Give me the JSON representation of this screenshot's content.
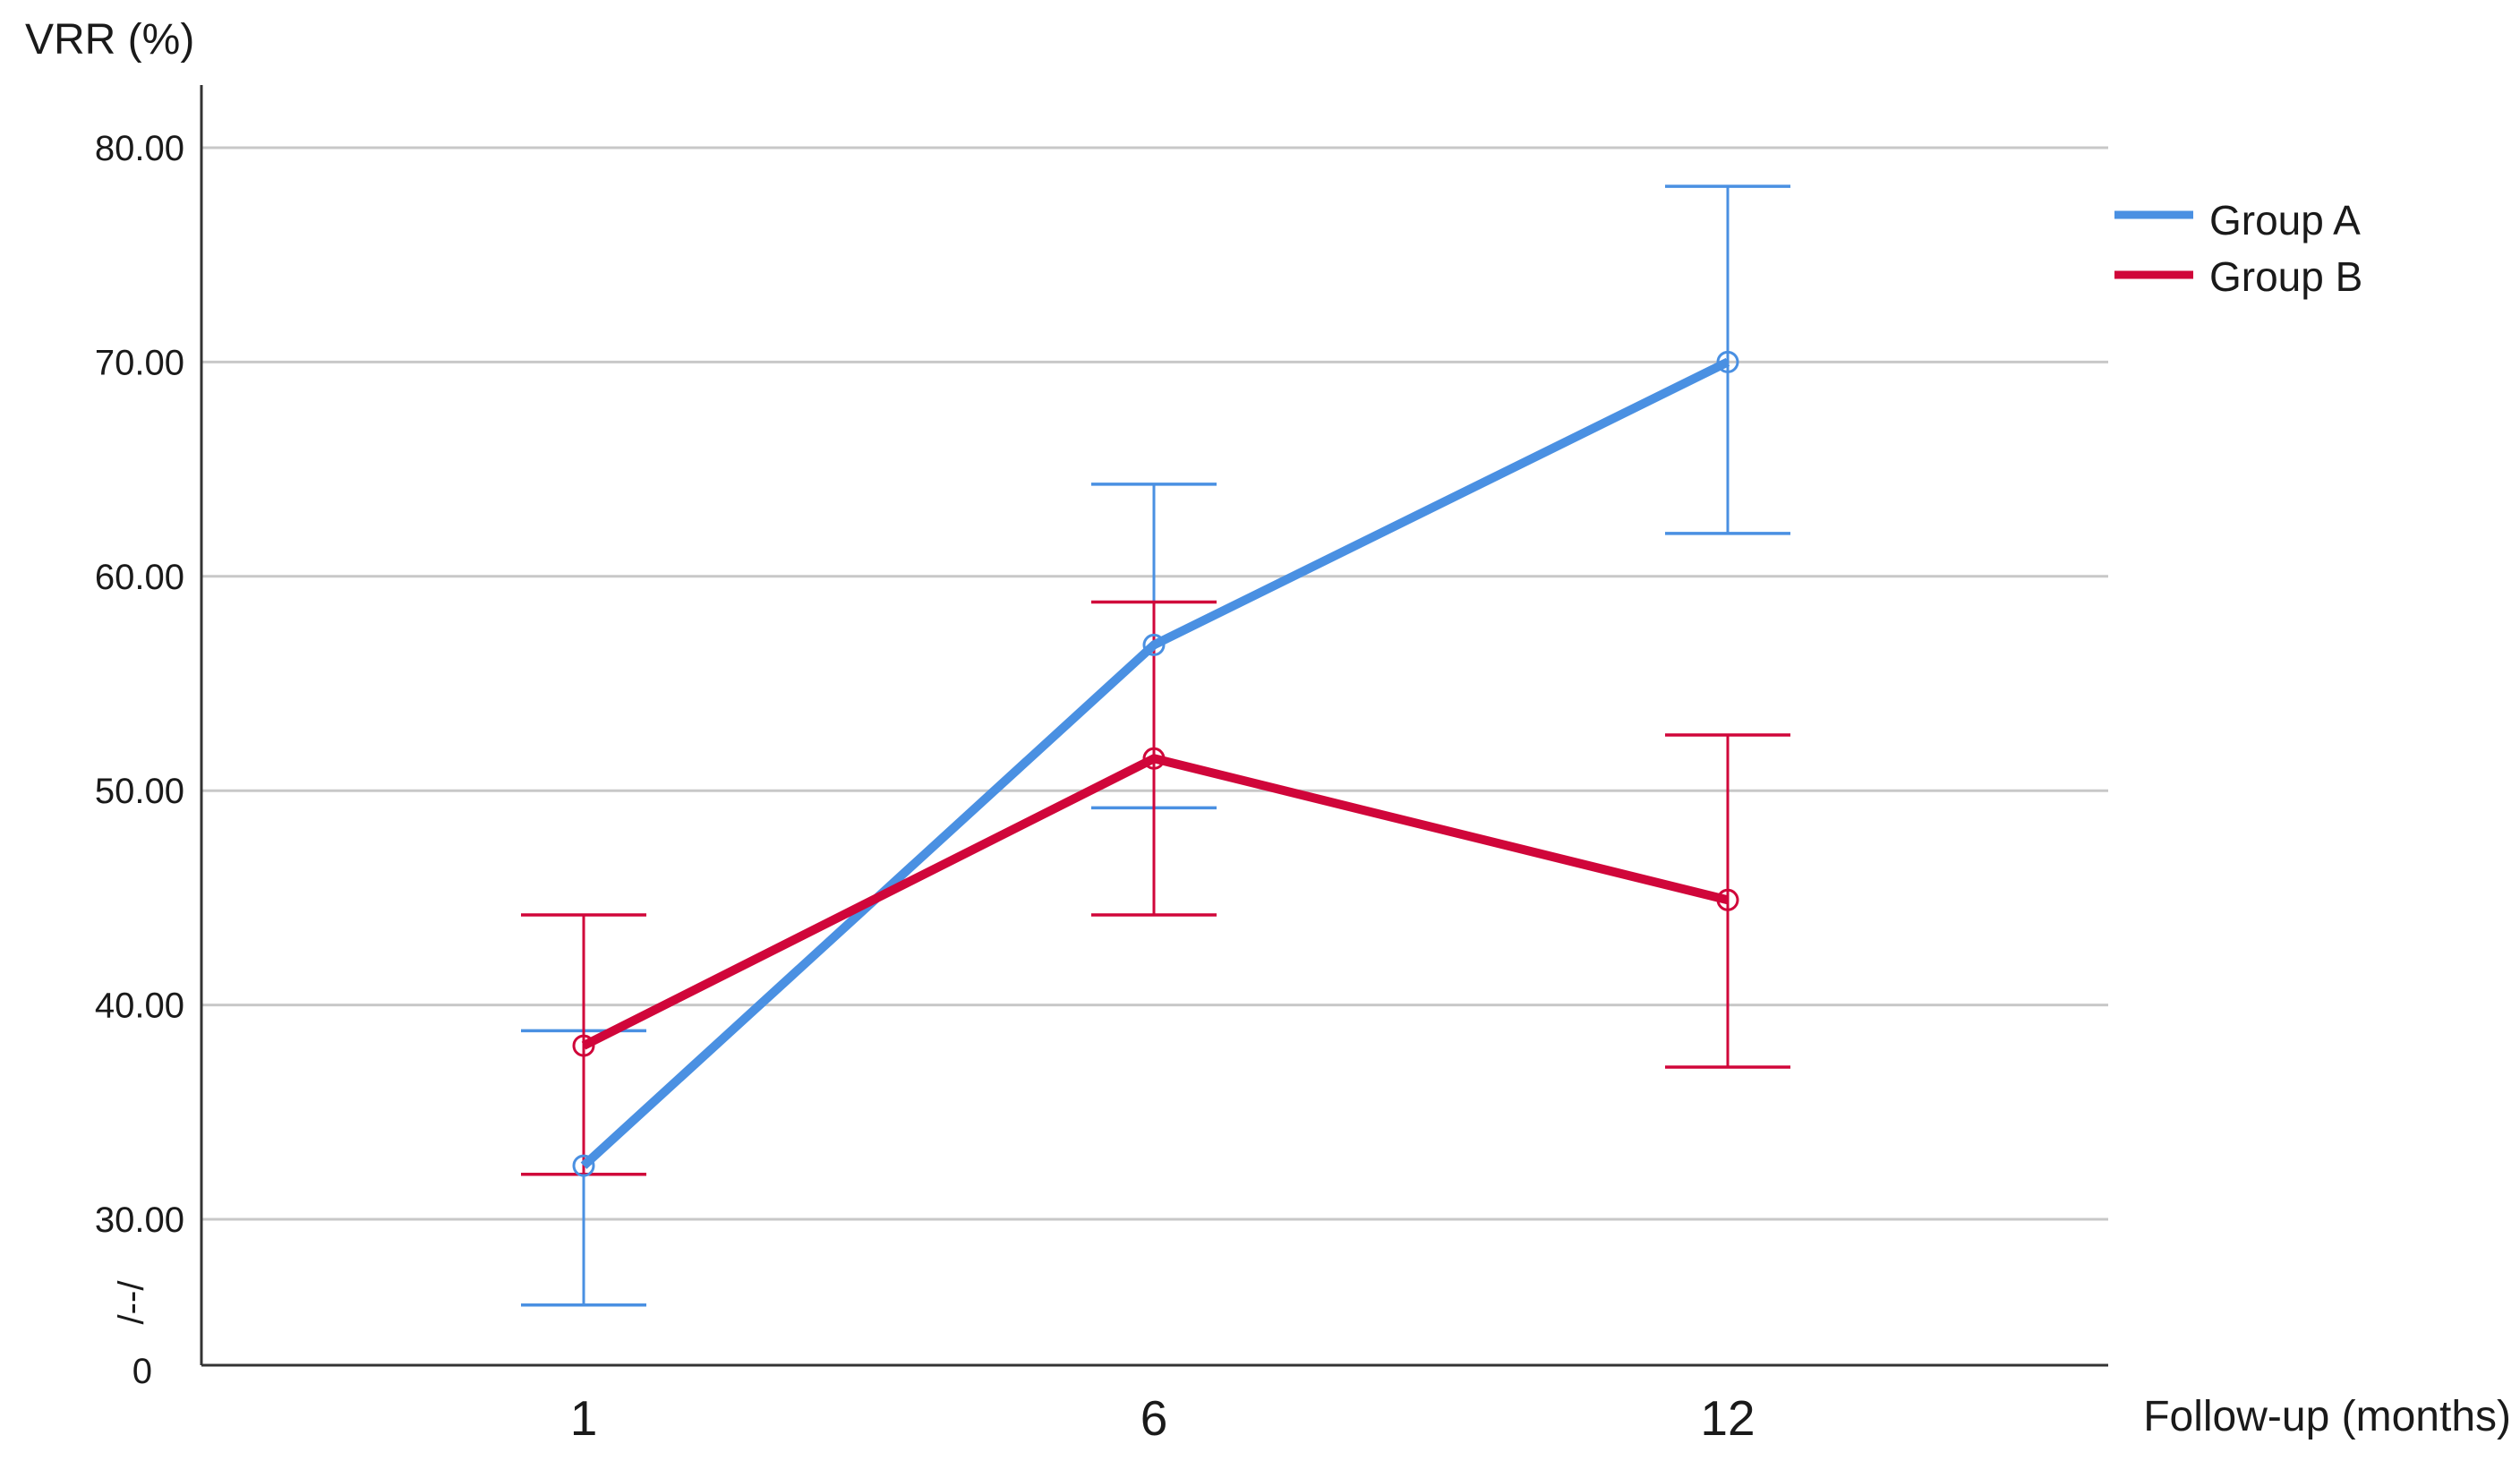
{
  "chart_data": {
    "type": "line",
    "ylabel": "VRR (%)",
    "xlabel": "Follow-up (months)",
    "categories": [
      "1",
      "6",
      "12"
    ],
    "yticks": [
      "80.00",
      "70.00",
      "60.00",
      "50.00",
      "40.00",
      "30.00"
    ],
    "ytick_values": [
      80,
      70,
      60,
      50,
      40,
      30
    ],
    "y_origin_label": "0",
    "axis_break_symbol": "/--/",
    "y_display_range": [
      30,
      80
    ],
    "grid": "horizontal",
    "legend_position": "top-right",
    "series": [
      {
        "name": "Group A",
        "color": "#4a90e2",
        "values": [
          32.5,
          56.8,
          70.0
        ],
        "error_low": [
          26.0,
          49.2,
          62.0
        ],
        "error_high": [
          38.8,
          64.3,
          78.2
        ]
      },
      {
        "name": "Group B",
        "color": "#d0063a",
        "values": [
          38.1,
          51.5,
          44.9
        ],
        "error_low": [
          32.1,
          44.2,
          37.1
        ],
        "error_high": [
          44.2,
          58.8,
          52.6
        ]
      }
    ]
  }
}
